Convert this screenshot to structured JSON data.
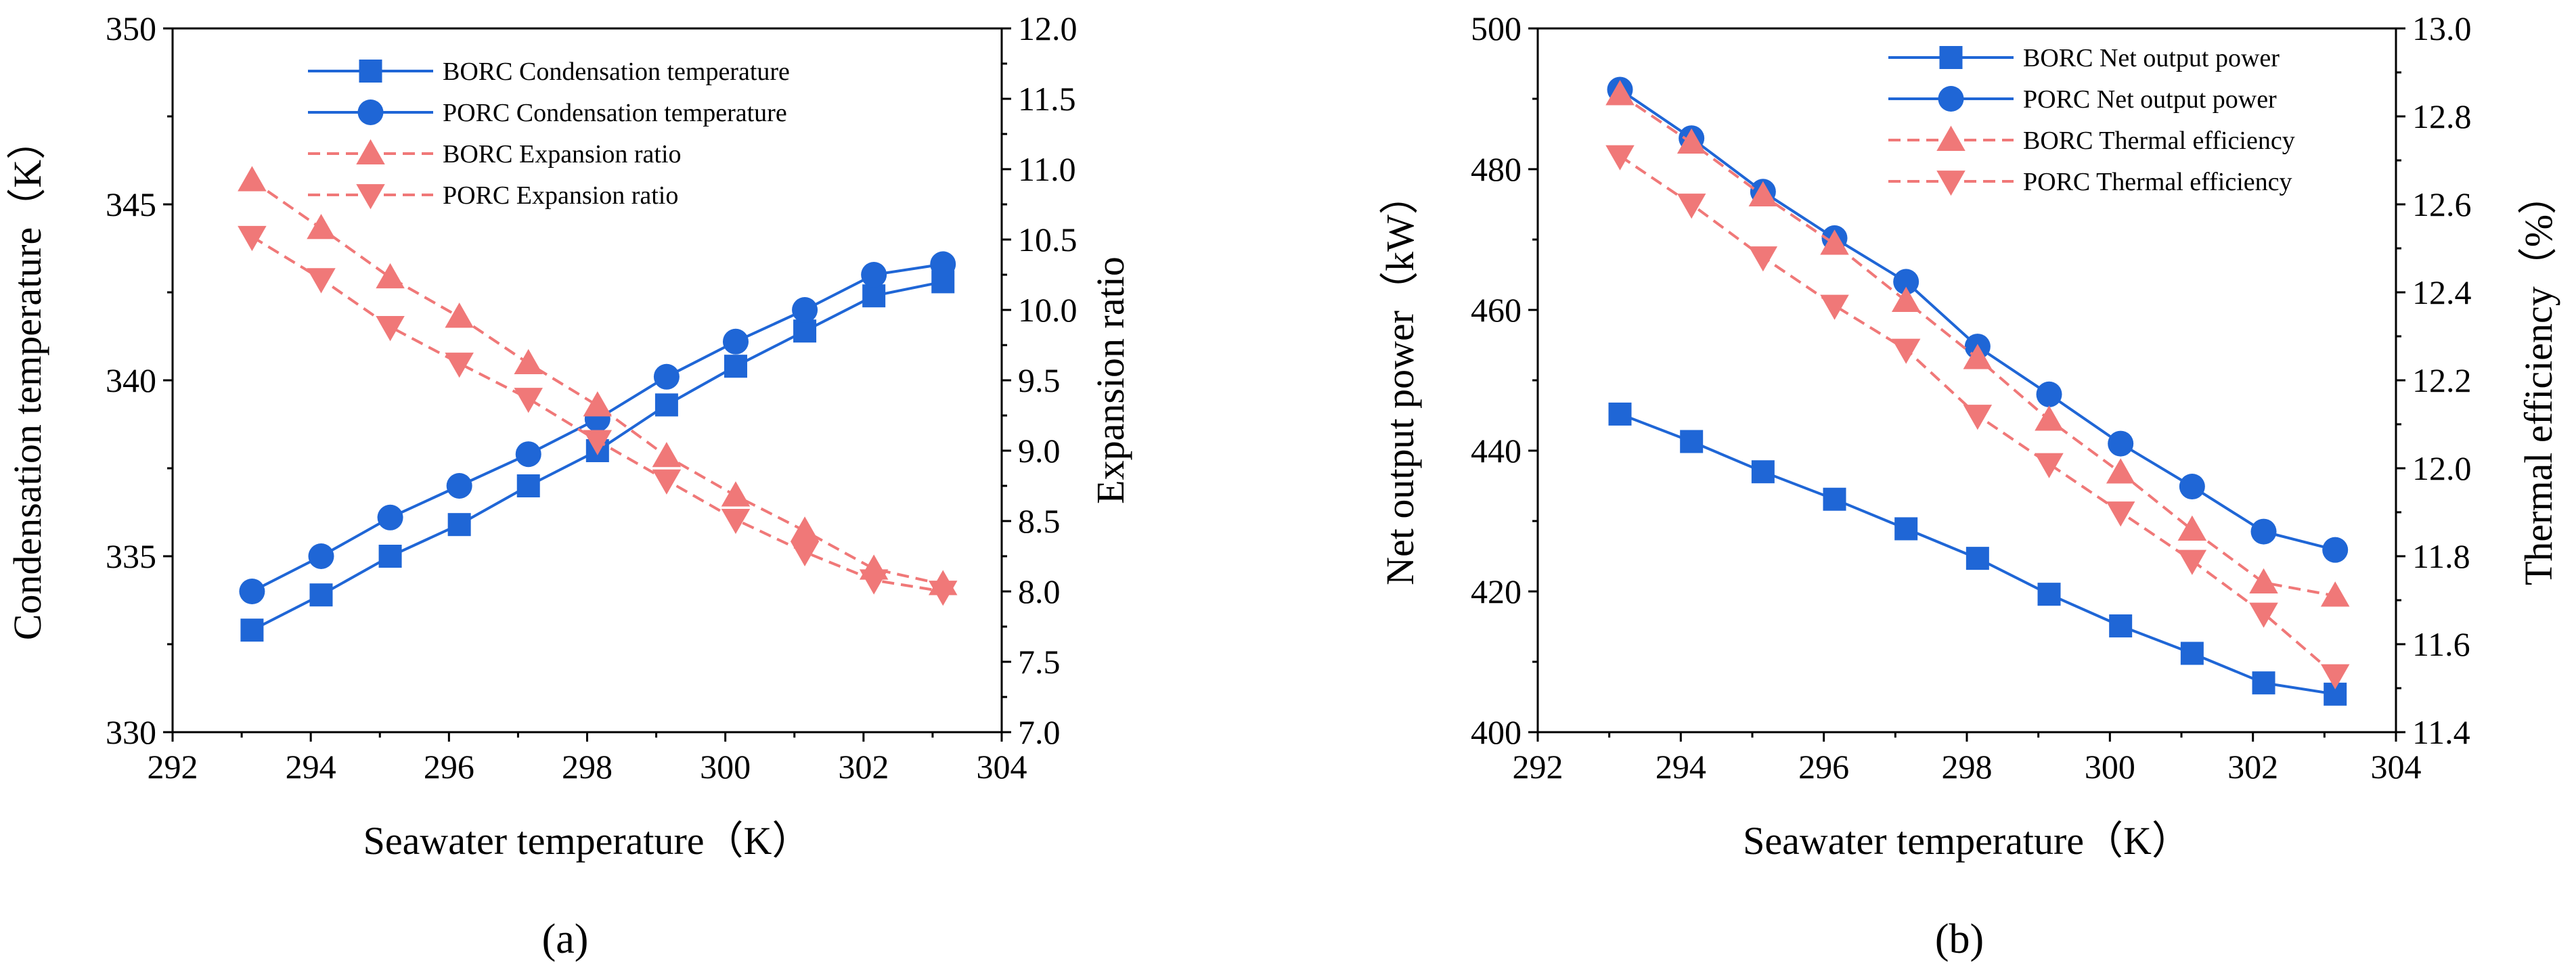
{
  "colors": {
    "blue": "#1F66D6",
    "red": "#F07878"
  },
  "chart_data": [
    {
      "type": "line",
      "panel_label": "(a)",
      "xlabel": "Seawater temperature（K）",
      "ylabel": "Condensation temperature（K）",
      "y2label": "Expansion ratio",
      "xlim": [
        292,
        304
      ],
      "ylim": [
        330,
        350
      ],
      "y2lim": [
        7.0,
        12.0
      ],
      "x_ticks": [
        "292",
        "294",
        "296",
        "298",
        "300",
        "302",
        "304"
      ],
      "y_ticks": [
        "330",
        "335",
        "340",
        "345",
        "350"
      ],
      "y2_ticks": [
        "7.0",
        "7.5",
        "8.0",
        "8.5",
        "9.0",
        "9.5",
        "10.0",
        "10.5",
        "11.0",
        "11.5",
        "12.0"
      ],
      "x": [
        293.15,
        294.15,
        295.15,
        296.15,
        297.15,
        298.15,
        299.15,
        300.15,
        301.15,
        302.15,
        303.15
      ],
      "legend_position": "top-right",
      "series": [
        {
          "name": "BORC Condensation temperature",
          "axis": "left",
          "color": "blue",
          "marker": "square",
          "dash": false,
          "values": [
            332.9,
            333.9,
            335.0,
            335.9,
            337.0,
            338.0,
            339.3,
            340.4,
            341.4,
            342.4,
            342.8
          ]
        },
        {
          "name": "PORC Condensation temperature",
          "axis": "left",
          "color": "blue",
          "marker": "circle",
          "dash": false,
          "values": [
            334.0,
            335.0,
            336.1,
            337.0,
            337.9,
            338.9,
            340.1,
            341.1,
            342.0,
            343.0,
            343.3
          ]
        },
        {
          "name": "BORC Expansion ratio",
          "axis": "right",
          "color": "red",
          "marker": "triangle-up",
          "dash": true,
          "values": [
            10.92,
            10.58,
            10.23,
            9.95,
            9.62,
            9.32,
            8.96,
            8.68,
            8.43,
            8.16,
            8.05
          ]
        },
        {
          "name": "PORC Expansion ratio",
          "axis": "right",
          "color": "red",
          "marker": "triangle-down",
          "dash": true,
          "values": [
            10.52,
            10.22,
            9.88,
            9.62,
            9.37,
            9.07,
            8.79,
            8.51,
            8.28,
            8.08,
            8.0
          ]
        }
      ]
    },
    {
      "type": "line",
      "panel_label": "(b)",
      "xlabel": "Seawater temperature（K）",
      "ylabel": "Net output power（kW）",
      "y2label": "Thermal efficiency（%）",
      "xlim": [
        292,
        304
      ],
      "ylim": [
        400,
        500
      ],
      "y2lim": [
        11.4,
        13.0
      ],
      "x_ticks": [
        "292",
        "294",
        "296",
        "298",
        "300",
        "302",
        "304"
      ],
      "y_ticks": [
        "400",
        "420",
        "440",
        "460",
        "480",
        "500"
      ],
      "y2_ticks": [
        "11.4",
        "11.6",
        "11.8",
        "12.0",
        "12.2",
        "12.4",
        "12.6",
        "12.8",
        "13.0"
      ],
      "x": [
        293.15,
        294.15,
        295.15,
        296.15,
        297.15,
        298.15,
        299.15,
        300.15,
        301.15,
        302.15,
        303.15
      ],
      "legend_position": "top-right",
      "series": [
        {
          "name": "BORC Net output power",
          "axis": "left",
          "color": "blue",
          "marker": "square",
          "dash": false,
          "values": [
            445.2,
            441.3,
            437.0,
            433.1,
            428.9,
            424.7,
            419.6,
            415.1,
            411.2,
            407.0,
            405.4
          ]
        },
        {
          "name": "PORC Net output power",
          "axis": "left",
          "color": "blue",
          "marker": "circle",
          "dash": false,
          "values": [
            491.3,
            484.4,
            476.8,
            470.2,
            464.0,
            454.8,
            448.0,
            441.0,
            434.9,
            428.5,
            425.9
          ]
        },
        {
          "name": "BORC Thermal efficiency",
          "axis": "right",
          "color": "red",
          "marker": "triangle-up",
          "dash": true,
          "values": [
            12.85,
            12.74,
            12.62,
            12.51,
            12.38,
            12.25,
            12.11,
            11.99,
            11.86,
            11.74,
            11.71
          ]
        },
        {
          "name": "PORC Thermal efficiency",
          "axis": "right",
          "color": "red",
          "marker": "triangle-down",
          "dash": true,
          "values": [
            12.71,
            12.6,
            12.48,
            12.37,
            12.27,
            12.12,
            12.01,
            11.9,
            11.79,
            11.67,
            11.53
          ]
        }
      ]
    }
  ]
}
